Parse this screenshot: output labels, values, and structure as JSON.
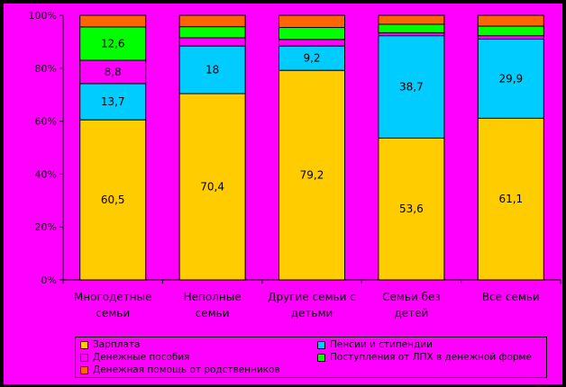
{
  "chart_data": {
    "type": "bar",
    "stacked": true,
    "normalized": true,
    "title": "",
    "categories": [
      [
        "Многодетные",
        "семьи"
      ],
      [
        "Неполные",
        "семьи"
      ],
      [
        "Другие семьи с",
        "детьми"
      ],
      [
        "Семьи без",
        "детей"
      ],
      [
        "Все семьи"
      ]
    ],
    "ylim": [
      0,
      100
    ],
    "yticks": [
      "0%",
      "20%",
      "40%",
      "60%",
      "80%",
      "100%"
    ],
    "series": [
      {
        "name": "Зарплата",
        "color": "#ffcc00",
        "values": [
          60.5,
          70.4,
          79.2,
          53.6,
          61.1
        ],
        "labels": [
          "60,5",
          "70,4",
          "79,2",
          "53,6",
          "61,1"
        ]
      },
      {
        "name": "Пенсии и стипендии",
        "color": "#00ccff",
        "values": [
          13.7,
          18.0,
          9.2,
          38.7,
          29.9
        ],
        "labels": [
          "13,7",
          "18",
          "9,2",
          "38,7",
          "29,9"
        ]
      },
      {
        "name": "Денежные пособия",
        "color": "#ff00ff",
        "values": [
          8.8,
          3.1,
          2.5,
          1.1,
          1.3
        ],
        "labels": [
          "8,8",
          "",
          "",
          "",
          ""
        ]
      },
      {
        "name": "Поступления от ЛПХ в денежной форме",
        "color": "#00ff00",
        "values": [
          12.6,
          4.2,
          4.5,
          3.2,
          3.6
        ],
        "labels": [
          "12,6",
          "",
          "",
          "",
          ""
        ]
      },
      {
        "name": "Денежная помощь от родственников",
        "color": "#ff6600",
        "values": [
          4.4,
          4.3,
          4.6,
          3.4,
          4.1
        ],
        "labels": [
          "",
          "",
          "",
          "",
          ""
        ]
      }
    ],
    "legend": {
      "placement": "bottom",
      "items": [
        {
          "label": "Зарплата",
          "color": "#ffcc00"
        },
        {
          "label": "Пенсии и стипендии",
          "color": "#00ccff"
        },
        {
          "label": "Денежные пособия",
          "color": "#ff00ff"
        },
        {
          "label": "Поступления от ЛПХ в денежной форме",
          "color": "#00ff00"
        },
        {
          "label": "Денежная помощь от родственников",
          "color": "#ff6600"
        }
      ]
    },
    "grid": false
  }
}
